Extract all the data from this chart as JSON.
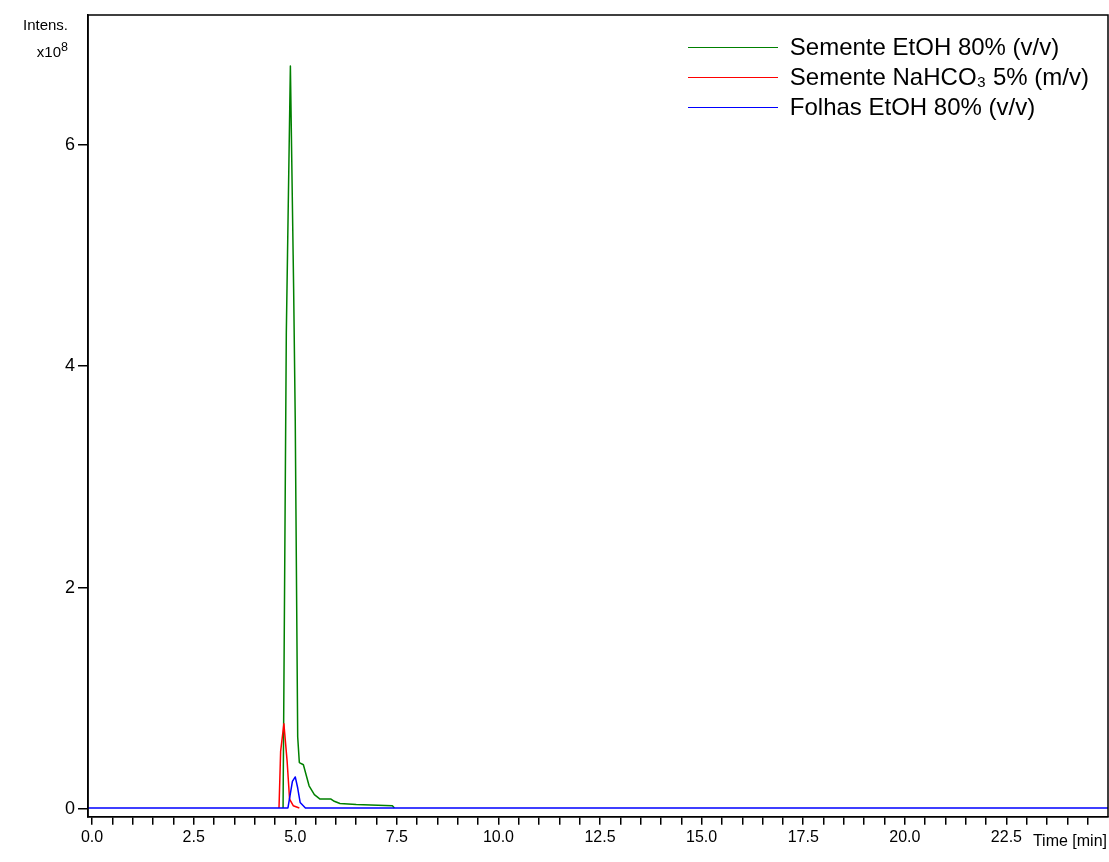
{
  "chart_data": {
    "type": "line",
    "xlabel": "Time [min]",
    "ylabel": "Intens. x10$^{8}$",
    "xlim": [
      -0.1,
      25.0
    ],
    "ylim": [
      -0.07,
      7.17
    ],
    "xticks": [
      {
        "value": 0,
        "label": "0.0"
      },
      {
        "value": 0.5,
        "label": null
      },
      {
        "value": 1,
        "label": null
      },
      {
        "value": 1.5,
        "label": null
      },
      {
        "value": 2,
        "label": null
      },
      2.5,
      {
        "value": 3,
        "label": null
      },
      {
        "value": 3.5,
        "label": null
      },
      {
        "value": 4,
        "label": null
      },
      {
        "value": 4.5,
        "label": null
      },
      {
        "value": 5,
        "label": "5.0"
      },
      {
        "value": 5.5,
        "label": null
      },
      {
        "value": 6,
        "label": null
      },
      {
        "value": 6.5,
        "label": null
      },
      {
        "value": 7,
        "label": null
      },
      7.5,
      {
        "value": 8,
        "label": null
      },
      {
        "value": 8.5,
        "label": null
      },
      {
        "value": 9,
        "label": null
      },
      {
        "value": 9.5,
        "label": null
      },
      {
        "value": 10,
        "label": "10.0"
      },
      {
        "value": 10.5,
        "label": null
      },
      {
        "value": 11,
        "label": null
      },
      {
        "value": 11.5,
        "label": null
      },
      {
        "value": 12,
        "label": null
      },
      12.5,
      {
        "value": 13,
        "label": null
      },
      {
        "value": 13.5,
        "label": null
      },
      {
        "value": 14,
        "label": null
      },
      {
        "value": 14.5,
        "label": null
      },
      {
        "value": 15,
        "label": "15.0"
      },
      {
        "value": 15.5,
        "label": null
      },
      {
        "value": 16,
        "label": null
      },
      {
        "value": 16.5,
        "label": null
      },
      {
        "value": 17,
        "label": null
      },
      17.5,
      {
        "value": 18,
        "label": null
      },
      {
        "value": 18.5,
        "label": null
      },
      {
        "value": 19,
        "label": null
      },
      {
        "value": 19.5,
        "label": null
      },
      {
        "value": 20,
        "label": "20.0"
      },
      {
        "value": 20.5,
        "label": null
      },
      {
        "value": 21,
        "label": null
      },
      {
        "value": 21.5,
        "label": null
      },
      {
        "value": 22,
        "label": null
      },
      22.5,
      {
        "value": 23,
        "label": null
      },
      {
        "value": 23.5,
        "label": null
      },
      {
        "value": 24,
        "label": null
      },
      {
        "value": 24.5,
        "label": null
      }
    ],
    "yticks": [
      0,
      2,
      4,
      6
    ],
    "legend": "top right",
    "series": [
      {
        "name": "Semente EtOH 80% (v/v)",
        "color": "#008000",
        "x": [
          4.7,
          4.78,
          4.88,
          4.96,
          5.0,
          5.06,
          5.1,
          5.2,
          5.34,
          5.47,
          5.61,
          5.88,
          5.96,
          6.1,
          6.5,
          7.39,
          7.44
        ],
        "values": [
          0.01,
          4.3,
          6.71,
          4.7,
          3.5,
          0.65,
          0.42,
          0.4,
          0.21,
          0.13,
          0.09,
          0.09,
          0.07,
          0.05,
          0.04,
          0.03,
          0.01
        ]
      },
      {
        "name": "Semente NaHCO₃ 5% (m/v)",
        "color": "#ff0000",
        "x": [
          4.6,
          4.64,
          4.72,
          4.8,
          4.86,
          4.95,
          5.1
        ],
        "values": [
          0.01,
          0.52,
          0.77,
          0.43,
          0.09,
          0.03,
          0.01
        ]
      },
      {
        "name": "Folhas EtOH 80% (v/v)",
        "color": "#0000ff",
        "x": [
          -0.1,
          4.82,
          4.93,
          5.0,
          5.06,
          5.12,
          5.25,
          25.0
        ],
        "values": [
          0.01,
          0.01,
          0.25,
          0.29,
          0.19,
          0.06,
          0.01,
          0.01
        ]
      }
    ]
  }
}
